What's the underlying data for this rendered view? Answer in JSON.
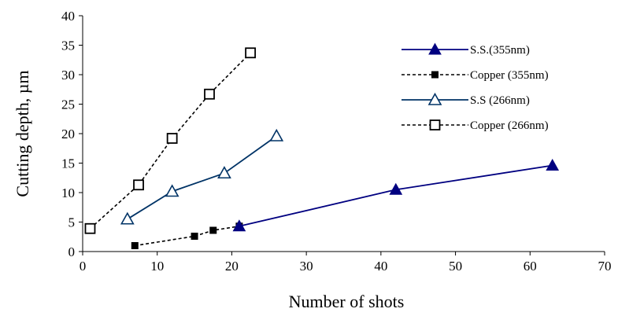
{
  "chart_data": {
    "type": "line",
    "title": "",
    "xlabel": "Number of shots",
    "ylabel": "Cutting depth,  µm",
    "xlim": [
      0,
      70
    ],
    "ylim": [
      0,
      40
    ],
    "x_ticks": [
      "0",
      "10",
      "20",
      "30",
      "40",
      "50",
      "60",
      "70"
    ],
    "y_ticks": [
      "0",
      "5",
      "10",
      "15",
      "20",
      "25",
      "30",
      "35",
      "40"
    ],
    "grid": false,
    "legend_position": "top-right",
    "series": [
      {
        "name": "S.S.(355nm)",
        "marker": "filled-triangle",
        "line": "solid",
        "color": "#000080",
        "points": [
          [
            21,
            4.3
          ],
          [
            42,
            10.5
          ],
          [
            63,
            14.6
          ]
        ]
      },
      {
        "name": "Copper (355nm)",
        "marker": "filled-square",
        "line": "dashed",
        "color": "#000000",
        "points": [
          [
            7,
            1.0
          ],
          [
            15,
            2.6
          ],
          [
            17.5,
            3.6
          ],
          [
            21,
            4.3
          ]
        ]
      },
      {
        "name": "S.S (266nm)",
        "marker": "open-triangle",
        "line": "solid",
        "color": "#003366",
        "points": [
          [
            6,
            5.5
          ],
          [
            12,
            10.2
          ],
          [
            19,
            13.3
          ],
          [
            26,
            19.6
          ]
        ]
      },
      {
        "name": "Copper (266nm)",
        "marker": "open-square",
        "line": "dashed",
        "color": "#000000",
        "points": [
          [
            1,
            3.9
          ],
          [
            7.5,
            11.3
          ],
          [
            12,
            19.2
          ],
          [
            17,
            26.7
          ],
          [
            22.5,
            33.7
          ]
        ]
      }
    ]
  }
}
